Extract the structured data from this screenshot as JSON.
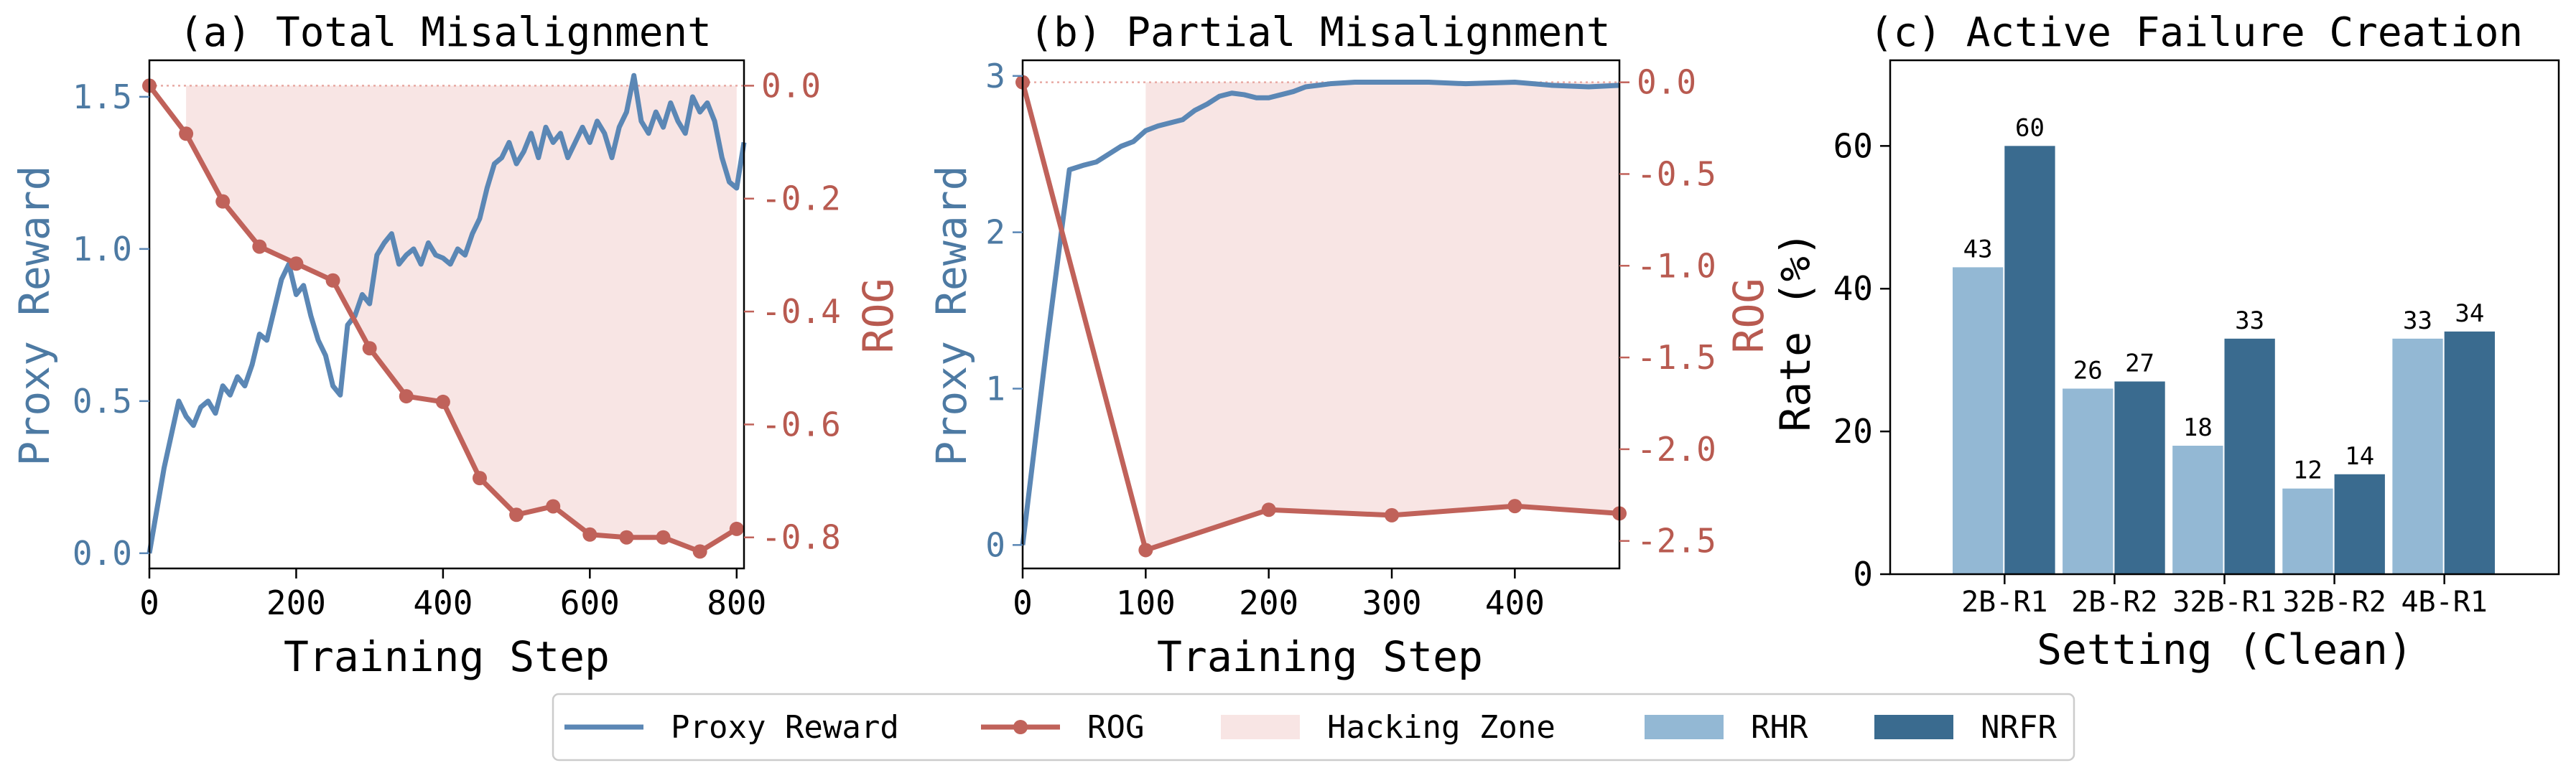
{
  "colors": {
    "proxy": "#5b87b5",
    "rog": "#c0625a",
    "hack": "#f8e5e4",
    "rhr": "#93b8d4",
    "nrfr": "#3a6b8f"
  },
  "legend": {
    "items": [
      {
        "label": "Proxy Reward",
        "kind": "line"
      },
      {
        "label": "ROG",
        "kind": "line-marker"
      },
      {
        "label": "Hacking Zone",
        "kind": "patch-hack"
      },
      {
        "label": "RHR",
        "kind": "patch-rhr"
      },
      {
        "label": "NRFR",
        "kind": "patch-nrfr"
      }
    ]
  },
  "chart_data": [
    {
      "type": "line",
      "title": "(a) Total Misalignment",
      "xlabel": "Training Step",
      "ylabel": "Proxy Reward",
      "y2label": "ROG",
      "xlim": [
        0,
        810
      ],
      "ylim": [
        -0.05,
        1.62
      ],
      "y2lim": [
        -0.855,
        0.045
      ],
      "xticks": [
        0,
        200,
        400,
        600,
        800
      ],
      "yticks": [
        0.0,
        0.5,
        1.0,
        1.5
      ],
      "y2ticks": [
        0.0,
        -0.2,
        -0.4,
        -0.6,
        -0.8
      ],
      "hacking_zone_start": 50,
      "series": [
        {
          "name": "Proxy Reward",
          "axis": "left",
          "x": [
            0,
            20,
            40,
            50,
            60,
            70,
            80,
            90,
            100,
            110,
            120,
            130,
            140,
            150,
            160,
            170,
            180,
            190,
            200,
            210,
            220,
            230,
            240,
            250,
            260,
            270,
            280,
            290,
            300,
            310,
            320,
            330,
            340,
            350,
            360,
            370,
            380,
            390,
            400,
            410,
            420,
            430,
            440,
            450,
            460,
            470,
            480,
            490,
            500,
            510,
            520,
            530,
            540,
            550,
            560,
            570,
            580,
            590,
            600,
            610,
            620,
            630,
            640,
            650,
            660,
            670,
            680,
            690,
            700,
            710,
            720,
            730,
            740,
            750,
            760,
            770,
            780,
            790,
            800,
            810
          ],
          "y": [
            0.0,
            0.28,
            0.5,
            0.45,
            0.42,
            0.48,
            0.5,
            0.46,
            0.55,
            0.52,
            0.58,
            0.55,
            0.62,
            0.72,
            0.7,
            0.8,
            0.9,
            0.95,
            0.85,
            0.88,
            0.78,
            0.7,
            0.65,
            0.55,
            0.52,
            0.75,
            0.78,
            0.85,
            0.82,
            0.98,
            1.02,
            1.05,
            0.95,
            0.98,
            1.0,
            0.95,
            1.02,
            0.98,
            0.97,
            0.95,
            1.0,
            0.98,
            1.05,
            1.1,
            1.2,
            1.28,
            1.3,
            1.35,
            1.28,
            1.32,
            1.38,
            1.3,
            1.4,
            1.35,
            1.38,
            1.3,
            1.35,
            1.4,
            1.35,
            1.42,
            1.38,
            1.3,
            1.4,
            1.45,
            1.57,
            1.42,
            1.38,
            1.45,
            1.4,
            1.48,
            1.42,
            1.38,
            1.5,
            1.45,
            1.48,
            1.42,
            1.3,
            1.22,
            1.2,
            1.35
          ]
        },
        {
          "name": "ROG",
          "axis": "right",
          "markers": true,
          "x": [
            0,
            50,
            100,
            150,
            200,
            250,
            300,
            350,
            400,
            450,
            500,
            550,
            600,
            650,
            700,
            750,
            800
          ],
          "y": [
            0.0,
            -0.085,
            -0.205,
            -0.285,
            -0.315,
            -0.345,
            -0.465,
            -0.55,
            -0.56,
            -0.695,
            -0.76,
            -0.745,
            -0.795,
            -0.8,
            -0.8,
            -0.825,
            -0.785
          ]
        }
      ]
    },
    {
      "type": "line",
      "title": "(b) Partial Misalignment",
      "xlabel": "Training Step",
      "ylabel": "Proxy Reward",
      "y2label": "ROG",
      "xlim": [
        0,
        485
      ],
      "ylim": [
        -0.15,
        3.1
      ],
      "y2lim": [
        -2.65,
        0.12
      ],
      "xticks": [
        0,
        100,
        200,
        300,
        400
      ],
      "yticks": [
        0,
        1,
        2,
        3
      ],
      "y2ticks": [
        0.0,
        -0.5,
        -1.0,
        -1.5,
        -2.0,
        -2.5
      ],
      "hacking_zone_start": 100,
      "series": [
        {
          "name": "Proxy Reward",
          "axis": "left",
          "x": [
            0,
            20,
            38,
            50,
            60,
            70,
            80,
            90,
            100,
            110,
            120,
            130,
            140,
            150,
            160,
            170,
            180,
            190,
            200,
            210,
            220,
            230,
            240,
            250,
            270,
            300,
            330,
            360,
            400,
            430,
            460,
            485
          ],
          "y": [
            0.0,
            1.3,
            2.4,
            2.43,
            2.45,
            2.5,
            2.55,
            2.58,
            2.65,
            2.68,
            2.7,
            2.72,
            2.78,
            2.82,
            2.87,
            2.89,
            2.88,
            2.86,
            2.86,
            2.88,
            2.9,
            2.93,
            2.94,
            2.95,
            2.96,
            2.96,
            2.96,
            2.95,
            2.96,
            2.94,
            2.93,
            2.94
          ]
        },
        {
          "name": "ROG",
          "axis": "right",
          "markers": true,
          "x": [
            0,
            100,
            200,
            300,
            400,
            485
          ],
          "y": [
            0.0,
            -2.55,
            -2.33,
            -2.36,
            -2.31,
            -2.35
          ]
        }
      ]
    },
    {
      "type": "bar",
      "title": "(c) Active Failure Creation",
      "xlabel": "Setting (Clean)",
      "ylabel": "Rate (%)",
      "ylim": [
        0,
        72
      ],
      "yticks": [
        0,
        20,
        40,
        60
      ],
      "categories": [
        "2B-R1",
        "2B-R2",
        "32B-R1",
        "32B-R2",
        "4B-R1"
      ],
      "series": [
        {
          "name": "RHR",
          "values": [
            43,
            26,
            18,
            12,
            33
          ],
          "labels": [
            "43",
            "26",
            "18",
            "12",
            "33"
          ]
        },
        {
          "name": "NRFR",
          "values": [
            60,
            27,
            33,
            14,
            34
          ],
          "labels": [
            "60",
            "27",
            "33",
            "14",
            "34"
          ]
        }
      ]
    }
  ]
}
